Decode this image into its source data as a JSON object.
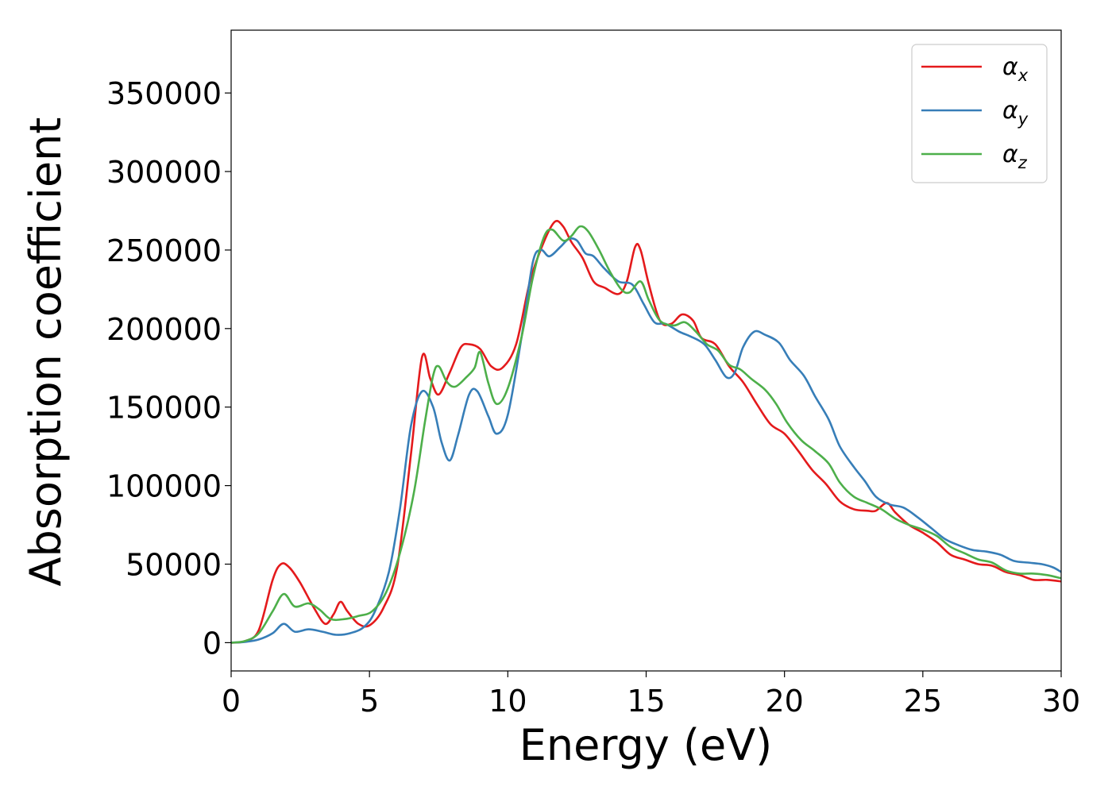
{
  "chart_data": {
    "type": "line",
    "title": "",
    "xlabel": "Energy (eV)",
    "ylabel": "Absorption coefficient",
    "xlim": [
      0,
      30
    ],
    "ylim": [
      -18000,
      390000
    ],
    "xticks": [
      0,
      5,
      10,
      15,
      20,
      25,
      30
    ],
    "xtick_labels": [
      "0",
      "5",
      "10",
      "15",
      "20",
      "25",
      "30"
    ],
    "yticks": [
      0,
      50000,
      100000,
      150000,
      200000,
      250000,
      300000,
      350000
    ],
    "ytick_labels": [
      "0",
      "50000",
      "100000",
      "150000",
      "200000",
      "250000",
      "300000",
      "350000"
    ],
    "grid": false,
    "legend_position": "top-right",
    "series": [
      {
        "name": "α_x",
        "label_main": "α",
        "label_sub": "x",
        "color": "#e41a1c",
        "points": [
          [
            0,
            0
          ],
          [
            0.5,
            1000
          ],
          [
            1.0,
            8000
          ],
          [
            1.5,
            40000
          ],
          [
            1.8,
            50000
          ],
          [
            2.1,
            48000
          ],
          [
            2.5,
            38000
          ],
          [
            3.0,
            22000
          ],
          [
            3.4,
            12000
          ],
          [
            3.7,
            18000
          ],
          [
            3.95,
            26000
          ],
          [
            4.2,
            20000
          ],
          [
            4.6,
            12000
          ],
          [
            5.0,
            11000
          ],
          [
            5.5,
            22000
          ],
          [
            6.0,
            48000
          ],
          [
            6.5,
            120000
          ],
          [
            6.9,
            182000
          ],
          [
            7.2,
            168000
          ],
          [
            7.5,
            158000
          ],
          [
            7.9,
            172000
          ],
          [
            8.3,
            188000
          ],
          [
            8.6,
            190000
          ],
          [
            9.0,
            187000
          ],
          [
            9.4,
            176000
          ],
          [
            9.8,
            175000
          ],
          [
            10.3,
            190000
          ],
          [
            10.8,
            230000
          ],
          [
            11.3,
            255000
          ],
          [
            11.7,
            268000
          ],
          [
            12.0,
            265000
          ],
          [
            12.3,
            255000
          ],
          [
            12.7,
            245000
          ],
          [
            13.1,
            230000
          ],
          [
            13.5,
            226000
          ],
          [
            14.0,
            222000
          ],
          [
            14.3,
            230000
          ],
          [
            14.6,
            252000
          ],
          [
            14.8,
            250000
          ],
          [
            15.1,
            228000
          ],
          [
            15.5,
            205000
          ],
          [
            15.9,
            203000
          ],
          [
            16.3,
            209000
          ],
          [
            16.7,
            205000
          ],
          [
            17.0,
            194000
          ],
          [
            17.5,
            190000
          ],
          [
            18.0,
            176000
          ],
          [
            18.5,
            166000
          ],
          [
            19.0,
            152000
          ],
          [
            19.5,
            139000
          ],
          [
            20.0,
            133000
          ],
          [
            20.5,
            122000
          ],
          [
            21.0,
            110000
          ],
          [
            21.5,
            101000
          ],
          [
            22.0,
            90000
          ],
          [
            22.5,
            85000
          ],
          [
            23.0,
            84000
          ],
          [
            23.3,
            84000
          ],
          [
            23.7,
            89000
          ],
          [
            24.0,
            83000
          ],
          [
            24.5,
            75000
          ],
          [
            25.0,
            70000
          ],
          [
            25.5,
            64000
          ],
          [
            26.0,
            56000
          ],
          [
            26.5,
            53000
          ],
          [
            27.0,
            50000
          ],
          [
            27.5,
            49000
          ],
          [
            28.0,
            45000
          ],
          [
            28.5,
            43000
          ],
          [
            29.0,
            40000
          ],
          [
            29.5,
            40000
          ],
          [
            30,
            39000
          ]
        ]
      },
      {
        "name": "α_y",
        "label_main": "α",
        "label_sub": "y",
        "color": "#377eb8",
        "points": [
          [
            0,
            0
          ],
          [
            0.5,
            500
          ],
          [
            1.0,
            2000
          ],
          [
            1.5,
            6000
          ],
          [
            1.9,
            12000
          ],
          [
            2.3,
            7000
          ],
          [
            2.8,
            8500
          ],
          [
            3.3,
            7000
          ],
          [
            3.8,
            5000
          ],
          [
            4.3,
            6000
          ],
          [
            4.8,
            10000
          ],
          [
            5.2,
            20000
          ],
          [
            5.7,
            45000
          ],
          [
            6.1,
            85000
          ],
          [
            6.5,
            138000
          ],
          [
            6.9,
            160000
          ],
          [
            7.3,
            150000
          ],
          [
            7.6,
            128000
          ],
          [
            7.9,
            116000
          ],
          [
            8.2,
            132000
          ],
          [
            8.6,
            158000
          ],
          [
            8.9,
            160000
          ],
          [
            9.3,
            144000
          ],
          [
            9.6,
            133000
          ],
          [
            10.0,
            145000
          ],
          [
            10.5,
            195000
          ],
          [
            10.9,
            242000
          ],
          [
            11.2,
            250000
          ],
          [
            11.5,
            246000
          ],
          [
            11.9,
            252000
          ],
          [
            12.2,
            257000
          ],
          [
            12.5,
            256000
          ],
          [
            12.8,
            248000
          ],
          [
            13.1,
            246000
          ],
          [
            13.5,
            238000
          ],
          [
            14.0,
            230000
          ],
          [
            14.5,
            228000
          ],
          [
            14.9,
            216000
          ],
          [
            15.3,
            204000
          ],
          [
            15.7,
            203000
          ],
          [
            16.2,
            198000
          ],
          [
            16.6,
            195000
          ],
          [
            17.1,
            190000
          ],
          [
            17.5,
            180000
          ],
          [
            17.9,
            169000
          ],
          [
            18.2,
            172000
          ],
          [
            18.5,
            188000
          ],
          [
            18.9,
            198000
          ],
          [
            19.3,
            196000
          ],
          [
            19.8,
            191000
          ],
          [
            20.2,
            180000
          ],
          [
            20.7,
            170000
          ],
          [
            21.1,
            157000
          ],
          [
            21.6,
            142000
          ],
          [
            22.0,
            125000
          ],
          [
            22.5,
            112000
          ],
          [
            22.9,
            103000
          ],
          [
            23.3,
            93000
          ],
          [
            23.8,
            88000
          ],
          [
            24.3,
            86000
          ],
          [
            24.8,
            80000
          ],
          [
            25.3,
            73000
          ],
          [
            25.8,
            66000
          ],
          [
            26.3,
            62000
          ],
          [
            26.8,
            59000
          ],
          [
            27.3,
            58000
          ],
          [
            27.8,
            56000
          ],
          [
            28.3,
            52000
          ],
          [
            28.8,
            51000
          ],
          [
            29.3,
            50000
          ],
          [
            29.7,
            48000
          ],
          [
            30,
            45000
          ]
        ]
      },
      {
        "name": "α_z",
        "label_main": "α",
        "label_sub": "z",
        "color": "#4daf4a",
        "points": [
          [
            0,
            0
          ],
          [
            0.5,
            1000
          ],
          [
            1.0,
            6000
          ],
          [
            1.5,
            20000
          ],
          [
            1.9,
            31000
          ],
          [
            2.3,
            23000
          ],
          [
            2.8,
            25000
          ],
          [
            3.2,
            21000
          ],
          [
            3.6,
            15000
          ],
          [
            4.1,
            15000
          ],
          [
            4.6,
            17000
          ],
          [
            5.1,
            20000
          ],
          [
            5.6,
            32000
          ],
          [
            6.1,
            57000
          ],
          [
            6.6,
            95000
          ],
          [
            7.0,
            140000
          ],
          [
            7.3,
            170000
          ],
          [
            7.5,
            176000
          ],
          [
            7.8,
            166000
          ],
          [
            8.1,
            163000
          ],
          [
            8.5,
            169000
          ],
          [
            8.8,
            175000
          ],
          [
            9.0,
            185000
          ],
          [
            9.3,
            165000
          ],
          [
            9.6,
            152000
          ],
          [
            10.0,
            162000
          ],
          [
            10.5,
            195000
          ],
          [
            10.9,
            232000
          ],
          [
            11.3,
            258000
          ],
          [
            11.6,
            263000
          ],
          [
            12.0,
            256000
          ],
          [
            12.3,
            259000
          ],
          [
            12.6,
            265000
          ],
          [
            12.9,
            262000
          ],
          [
            13.3,
            250000
          ],
          [
            13.7,
            236000
          ],
          [
            14.1,
            225000
          ],
          [
            14.4,
            223000
          ],
          [
            14.8,
            230000
          ],
          [
            15.1,
            218000
          ],
          [
            15.5,
            205000
          ],
          [
            16.0,
            202000
          ],
          [
            16.4,
            204000
          ],
          [
            16.8,
            198000
          ],
          [
            17.2,
            190000
          ],
          [
            17.6,
            186000
          ],
          [
            18.0,
            177000
          ],
          [
            18.4,
            174000
          ],
          [
            18.8,
            168000
          ],
          [
            19.3,
            161000
          ],
          [
            19.7,
            152000
          ],
          [
            20.1,
            140000
          ],
          [
            20.6,
            129000
          ],
          [
            21.1,
            122000
          ],
          [
            21.6,
            114000
          ],
          [
            22.0,
            102000
          ],
          [
            22.5,
            93000
          ],
          [
            23.0,
            89000
          ],
          [
            23.5,
            85000
          ],
          [
            24.0,
            79000
          ],
          [
            24.5,
            75000
          ],
          [
            25.0,
            72000
          ],
          [
            25.5,
            68000
          ],
          [
            26.0,
            61000
          ],
          [
            26.5,
            57000
          ],
          [
            27.0,
            53000
          ],
          [
            27.5,
            51000
          ],
          [
            28.0,
            46000
          ],
          [
            28.5,
            44000
          ],
          [
            29.0,
            44000
          ],
          [
            29.5,
            43000
          ],
          [
            30,
            41000
          ]
        ]
      }
    ]
  }
}
